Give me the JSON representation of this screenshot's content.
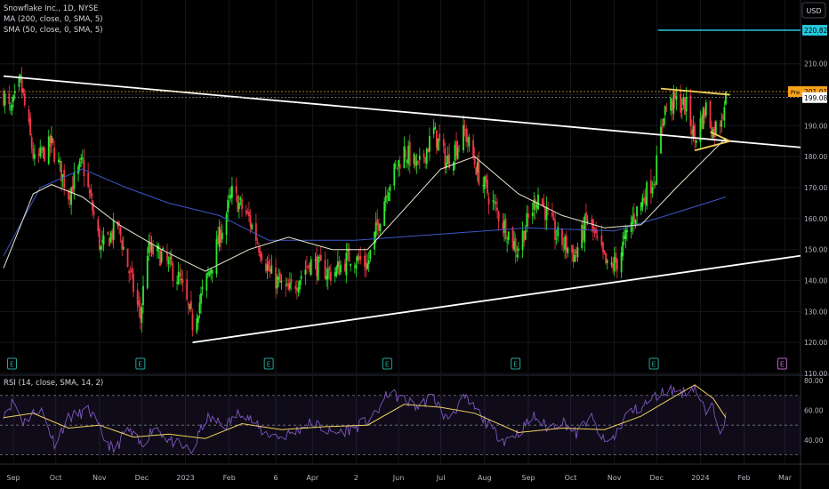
{
  "header": {
    "symbol_line": "Snowflake Inc., 1D, NYSE",
    "ma200_label": "MA (200, close, 0, SMA, 5)",
    "sma50_label": "SMA (50, close, 0, SMA, 5)",
    "currency": "USD"
  },
  "chart_data": [
    {
      "type": "candlestick",
      "title": "Snowflake Inc., 1D, NYSE",
      "ylim": [
        110,
        226
      ],
      "y_ticks": [
        110,
        120,
        130,
        140,
        150,
        160,
        170,
        180,
        190,
        200,
        210
      ],
      "x_ticks": [
        "Sep",
        "Oct",
        "Nov",
        "Dec",
        "2023",
        "Feb",
        "6",
        "Apr",
        "2",
        "Jun",
        "Jul",
        "Aug",
        "Sep",
        "Oct",
        "Nov",
        "Dec",
        "2024",
        "Feb",
        "Mar"
      ],
      "x_range": [
        "2022-08-25",
        "2024-03-12"
      ],
      "price_labels": [
        {
          "label": "",
          "value": 220.82,
          "color": "#26c6da"
        },
        {
          "label": "Pre",
          "value": 201.01,
          "color": "#f7a21b"
        },
        {
          "label": "",
          "value": 199.08,
          "color": "#ffffff"
        }
      ],
      "key_prices": [
        {
          "date": "2022-08-26",
          "high": 206
        },
        {
          "date": "2022-11-30",
          "low": 124
        },
        {
          "date": "2023-01-06",
          "low": 120
        },
        {
          "date": "2023-05-31",
          "high": 193
        },
        {
          "date": "2023-07-18",
          "high": 193
        },
        {
          "date": "2023-11-02",
          "low": 138
        },
        {
          "date": "2023-12-04",
          "high": 202
        },
        {
          "date": "2024-01-19",
          "close": 199
        }
      ],
      "series": [
        {
          "points": [
            [
              "2022-08-25",
              148
            ],
            [
              "2022-09-20",
              170
            ],
            [
              "2022-10-20",
              176
            ],
            [
              "2022-11-20",
              170
            ],
            [
              "2022-12-20",
              165
            ],
            [
              "2023-01-25",
              161
            ],
            [
              "2023-03-01",
              153
            ],
            [
              "2023-05-01",
              153
            ],
            [
              "2023-07-01",
              155
            ],
            [
              "2023-09-01",
              157
            ],
            [
              "2023-11-01",
              156
            ],
            [
              "2023-12-01",
              160
            ],
            [
              "2024-01-19",
              167
            ]
          ],
          "color": "#3d57c7"
        },
        {
          "points": [
            [
              "2022-08-25",
              144
            ],
            [
              "2022-09-15",
              168
            ],
            [
              "2022-09-28",
              171
            ],
            [
              "2022-10-20",
              167
            ],
            [
              "2022-11-15",
              158
            ],
            [
              "2022-12-15",
              150
            ],
            [
              "2023-01-15",
              143
            ],
            [
              "2023-02-15",
              150
            ],
            [
              "2023-03-15",
              154
            ],
            [
              "2023-04-15",
              150
            ],
            [
              "2023-05-10",
              150
            ],
            [
              "2023-06-05",
              163
            ],
            [
              "2023-07-01",
              176
            ],
            [
              "2023-07-25",
              180
            ],
            [
              "2023-08-25",
              168
            ],
            [
              "2023-09-25",
              161
            ],
            [
              "2023-10-25",
              157
            ],
            [
              "2023-11-20",
              158
            ],
            [
              "2023-12-15",
              170
            ],
            [
              "2024-01-19",
              186
            ]
          ],
          "color": "#e8e8d0"
        }
      ],
      "annotations": [
        {
          "type": "trendline",
          "from": [
            "2022-08-25",
            206
          ],
          "to": [
            "2024-03-12",
            183
          ],
          "color": "#ffffff"
        },
        {
          "type": "trendline",
          "from": [
            "2023-01-06",
            120
          ],
          "to": [
            "2024-03-12",
            148
          ],
          "color": "#ffffff"
        },
        {
          "type": "trendline",
          "from": [
            "2023-12-04",
            202
          ],
          "to": [
            "2024-01-22",
            200
          ],
          "color": "#f2d15e"
        },
        {
          "type": "trendline",
          "from": [
            "2023-12-28",
            182
          ],
          "to": [
            "2024-01-22",
            185
          ],
          "color": "#f2d15e"
        },
        {
          "type": "trendline",
          "from": [
            "2024-01-08",
            188
          ],
          "to": [
            "2024-01-22",
            185
          ],
          "color": "#f2d15e"
        },
        {
          "type": "hline",
          "value": 220.82,
          "from": "2023-12-02",
          "color": "#26c6da"
        }
      ],
      "earnings_markers": [
        {
          "date": "2022-08-31",
          "label": "E",
          "color": "#26a69a"
        },
        {
          "date": "2022-11-30",
          "label": "E",
          "color": "#26a69a"
        },
        {
          "date": "2023-03-01",
          "label": "E",
          "color": "#26a69a"
        },
        {
          "date": "2023-05-24",
          "label": "E",
          "color": "#26a69a"
        },
        {
          "date": "2023-08-23",
          "label": "E",
          "color": "#26a69a"
        },
        {
          "date": "2023-11-29",
          "label": "E",
          "color": "#26a69a"
        },
        {
          "date": "2024-02-28",
          "label": "E",
          "color": "#ba68c8"
        }
      ]
    },
    {
      "type": "line",
      "title": "RSI (14, close, SMA, 14, 2)",
      "ylim": [
        25,
        80
      ],
      "y_ticks": [
        40,
        60,
        80
      ],
      "bands": [
        30,
        50,
        70
      ],
      "rsi_keypoints": [
        [
          "2022-08-25",
          58
        ],
        [
          "2022-09-01",
          66
        ],
        [
          "2022-09-08",
          52
        ],
        [
          "2022-09-20",
          62
        ],
        [
          "2022-09-30",
          38
        ],
        [
          "2022-10-10",
          55
        ],
        [
          "2022-10-25",
          60
        ],
        [
          "2022-11-05",
          40
        ],
        [
          "2022-11-12",
          32
        ],
        [
          "2022-11-20",
          48
        ],
        [
          "2022-12-01",
          36
        ],
        [
          "2022-12-10",
          50
        ],
        [
          "2022-12-20",
          40
        ],
        [
          "2023-01-06",
          32
        ],
        [
          "2023-01-15",
          55
        ],
        [
          "2023-01-30",
          50
        ],
        [
          "2023-02-10",
          60
        ],
        [
          "2023-02-25",
          45
        ],
        [
          "2023-03-10",
          42
        ],
        [
          "2023-03-20",
          46
        ],
        [
          "2023-04-01",
          52
        ],
        [
          "2023-04-15",
          44
        ],
        [
          "2023-05-01",
          48
        ],
        [
          "2023-05-15",
          56
        ],
        [
          "2023-05-25",
          72
        ],
        [
          "2023-06-05",
          67
        ],
        [
          "2023-06-15",
          62
        ],
        [
          "2023-06-25",
          70
        ],
        [
          "2023-07-05",
          54
        ],
        [
          "2023-07-18",
          68
        ],
        [
          "2023-07-28",
          58
        ],
        [
          "2023-08-07",
          46
        ],
        [
          "2023-08-15",
          40
        ],
        [
          "2023-08-25",
          45
        ],
        [
          "2023-09-05",
          56
        ],
        [
          "2023-09-15",
          48
        ],
        [
          "2023-09-25",
          53
        ],
        [
          "2023-10-05",
          44
        ],
        [
          "2023-10-15",
          56
        ],
        [
          "2023-10-25",
          38
        ],
        [
          "2023-11-01",
          42
        ],
        [
          "2023-11-10",
          58
        ],
        [
          "2023-11-20",
          62
        ],
        [
          "2023-12-01",
          70
        ],
        [
          "2023-12-10",
          74
        ],
        [
          "2023-12-20",
          72
        ],
        [
          "2023-12-28",
          76
        ],
        [
          "2024-01-05",
          58
        ],
        [
          "2024-01-10",
          62
        ],
        [
          "2024-01-15",
          48
        ],
        [
          "2024-01-19",
          55
        ]
      ],
      "series": [
        {
          "points": [
            [
              "2022-08-25",
              55
            ],
            [
              "2022-09-15",
              58
            ],
            [
              "2022-10-10",
              48
            ],
            [
              "2022-11-01",
              50
            ],
            [
              "2022-11-25",
              42
            ],
            [
              "2022-12-20",
              44
            ],
            [
              "2023-01-15",
              41
            ],
            [
              "2023-02-10",
              51
            ],
            [
              "2023-03-10",
              47
            ],
            [
              "2023-04-10",
              49
            ],
            [
              "2023-05-10",
              50
            ],
            [
              "2023-06-05",
              64
            ],
            [
              "2023-07-01",
              62
            ],
            [
              "2023-07-25",
              58
            ],
            [
              "2023-08-25",
              45
            ],
            [
              "2023-09-25",
              48
            ],
            [
              "2023-10-25",
              47
            ],
            [
              "2023-11-20",
              56
            ],
            [
              "2023-12-15",
              70
            ],
            [
              "2023-12-28",
              77
            ],
            [
              "2024-01-10",
              68
            ],
            [
              "2024-01-19",
              55
            ]
          ],
          "color": "#f2d15e"
        }
      ]
    }
  ]
}
